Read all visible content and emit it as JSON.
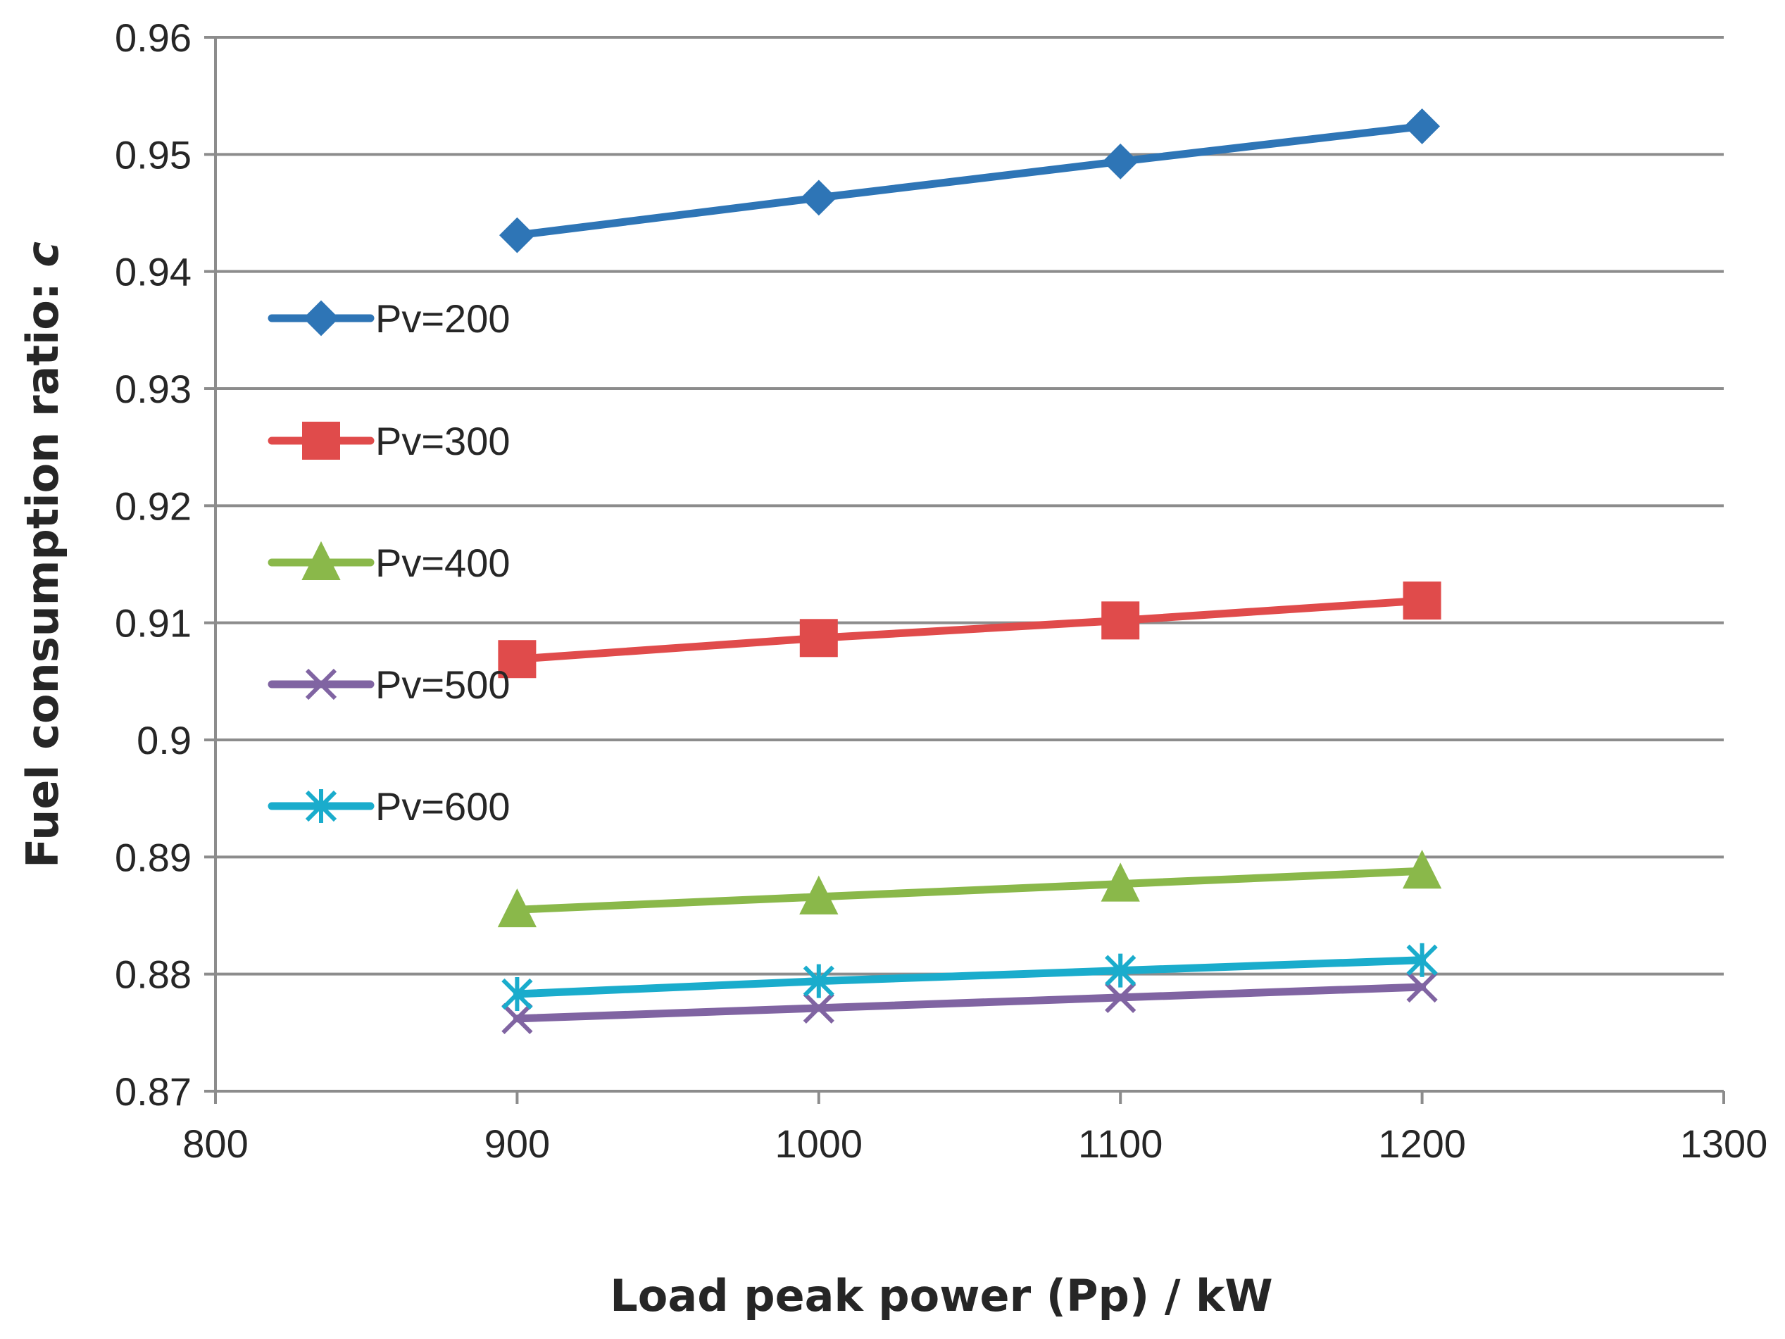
{
  "chart_data": {
    "type": "line",
    "title": "",
    "xlabel": "Load peak power (Pp) / kW",
    "ylabel_main": "Fuel consumption ratio: ",
    "ylabel_var": "c",
    "xlim": [
      800,
      1300
    ],
    "ylim": [
      0.87,
      0.96
    ],
    "xticks": [
      800,
      900,
      1000,
      1100,
      1200,
      1300
    ],
    "xtick_labels": [
      "800",
      "900",
      "1000",
      "1100",
      "1200",
      "1300"
    ],
    "yticks": [
      0.87,
      0.88,
      0.89,
      0.9,
      0.91,
      0.92,
      0.93,
      0.94,
      0.95,
      0.96
    ],
    "ytick_labels": [
      "0.87",
      "0.88",
      "0.89",
      "0.9",
      "0.91",
      "0.92",
      "0.93",
      "0.94",
      "0.95",
      "0.96"
    ],
    "grid": true,
    "legend_position": "left",
    "x": [
      900,
      1000,
      1100,
      1200
    ],
    "series": [
      {
        "name": "Pv=200",
        "color": "#2e75b6",
        "marker": "diamond",
        "values": [
          0.9431,
          0.9463,
          0.9494,
          0.9524
        ]
      },
      {
        "name": "Pv=300",
        "color": "#e04b4b",
        "marker": "square",
        "values": [
          0.9069,
          0.9087,
          0.9102,
          0.9119
        ]
      },
      {
        "name": "Pv=400",
        "color": "#8ab84a",
        "marker": "triangle",
        "values": [
          0.8855,
          0.8866,
          0.8877,
          0.8888
        ]
      },
      {
        "name": "Pv=500",
        "color": "#8064a2",
        "marker": "x",
        "values": [
          0.8762,
          0.8771,
          0.878,
          0.8789
        ]
      },
      {
        "name": "Pv=600",
        "color": "#1aaccc",
        "marker": "asterisk",
        "values": [
          0.8783,
          0.8794,
          0.8803,
          0.8812
        ]
      }
    ]
  }
}
